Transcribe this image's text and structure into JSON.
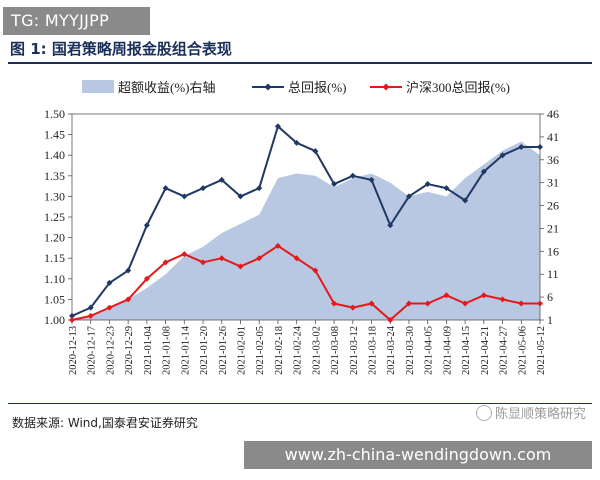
{
  "badge": "TG: MYYJJPP",
  "figure_title": "图 1:  国君策略周报金股组合表现",
  "source": "数据来源:  Wind,国泰君安证券研究",
  "watermark": "陈显顺策略研究",
  "url_banner": "www.zh-china-wendingdown.com",
  "chart_data": {
    "type": "line",
    "title": "",
    "xlabel": "",
    "ylabel": "",
    "legend_position": "top",
    "grid": false,
    "y_left": {
      "range": [
        1.0,
        1.5
      ],
      "ticks": [
        "1.00",
        "1.05",
        "1.10",
        "1.15",
        "1.20",
        "1.25",
        "1.30",
        "1.35",
        "1.40",
        "1.45",
        "1.50"
      ]
    },
    "y_right": {
      "range": [
        1,
        46
      ],
      "ticks": [
        "1",
        "6",
        "11",
        "16",
        "21",
        "26",
        "31",
        "36",
        "41",
        "46"
      ]
    },
    "x_tick_labels": [
      "2020-12-13",
      "2020-12-17",
      "2020-12-23",
      "2020-12-29",
      "2021-01-04",
      "2021-01-08",
      "2021-01-14",
      "2021-01-20",
      "2021-01-26",
      "2021-02-01",
      "2021-02-05",
      "2021-02-18",
      "2021-02-24",
      "2021-03-02",
      "2021-03-08",
      "2021-03-12",
      "2021-03-18",
      "2021-03-24",
      "2021-03-30",
      "2021-04-05",
      "2021-04-09",
      "2021-04-15",
      "2021-04-21",
      "2021-04-27",
      "2021-05-06",
      "2021-05-12"
    ],
    "x_index": [
      0,
      1,
      2,
      3,
      4,
      5,
      6,
      7,
      8,
      9,
      10,
      11,
      12,
      13,
      14,
      15,
      16,
      17,
      18,
      19,
      20,
      21,
      22,
      23,
      24,
      25
    ],
    "series": [
      {
        "name": "超额收益(%)右轴",
        "type": "area",
        "axis": "right",
        "color": "#b9c8e2",
        "values": [
          1.0,
          2.0,
          3.5,
          5.5,
          8.0,
          11.0,
          15.0,
          17.0,
          20.0,
          22.0,
          24.0,
          32.0,
          33.0,
          32.5,
          30.0,
          32.0,
          33.0,
          31.0,
          28.0,
          29.0,
          28.0,
          32.0,
          35.0,
          38.0,
          40.0,
          37.0
        ]
      },
      {
        "name": "总回报(%)",
        "type": "line",
        "axis": "left",
        "color": "#1f3864",
        "marker": "diamond",
        "values": [
          1.01,
          1.03,
          1.09,
          1.12,
          1.23,
          1.32,
          1.3,
          1.32,
          1.34,
          1.3,
          1.32,
          1.47,
          1.43,
          1.41,
          1.33,
          1.35,
          1.34,
          1.23,
          1.3,
          1.33,
          1.32,
          1.29,
          1.36,
          1.4,
          1.42,
          1.42
        ]
      },
      {
        "name": "沪深300总回报(%)",
        "type": "line",
        "axis": "left",
        "color": "#e31a1c",
        "marker": "diamond",
        "values": [
          1.0,
          1.01,
          1.03,
          1.05,
          1.1,
          1.14,
          1.16,
          1.14,
          1.15,
          1.13,
          1.15,
          1.18,
          1.15,
          1.12,
          1.04,
          1.03,
          1.04,
          1.0,
          1.04,
          1.04,
          1.06,
          1.04,
          1.06,
          1.05,
          1.04,
          1.04
        ]
      }
    ]
  }
}
